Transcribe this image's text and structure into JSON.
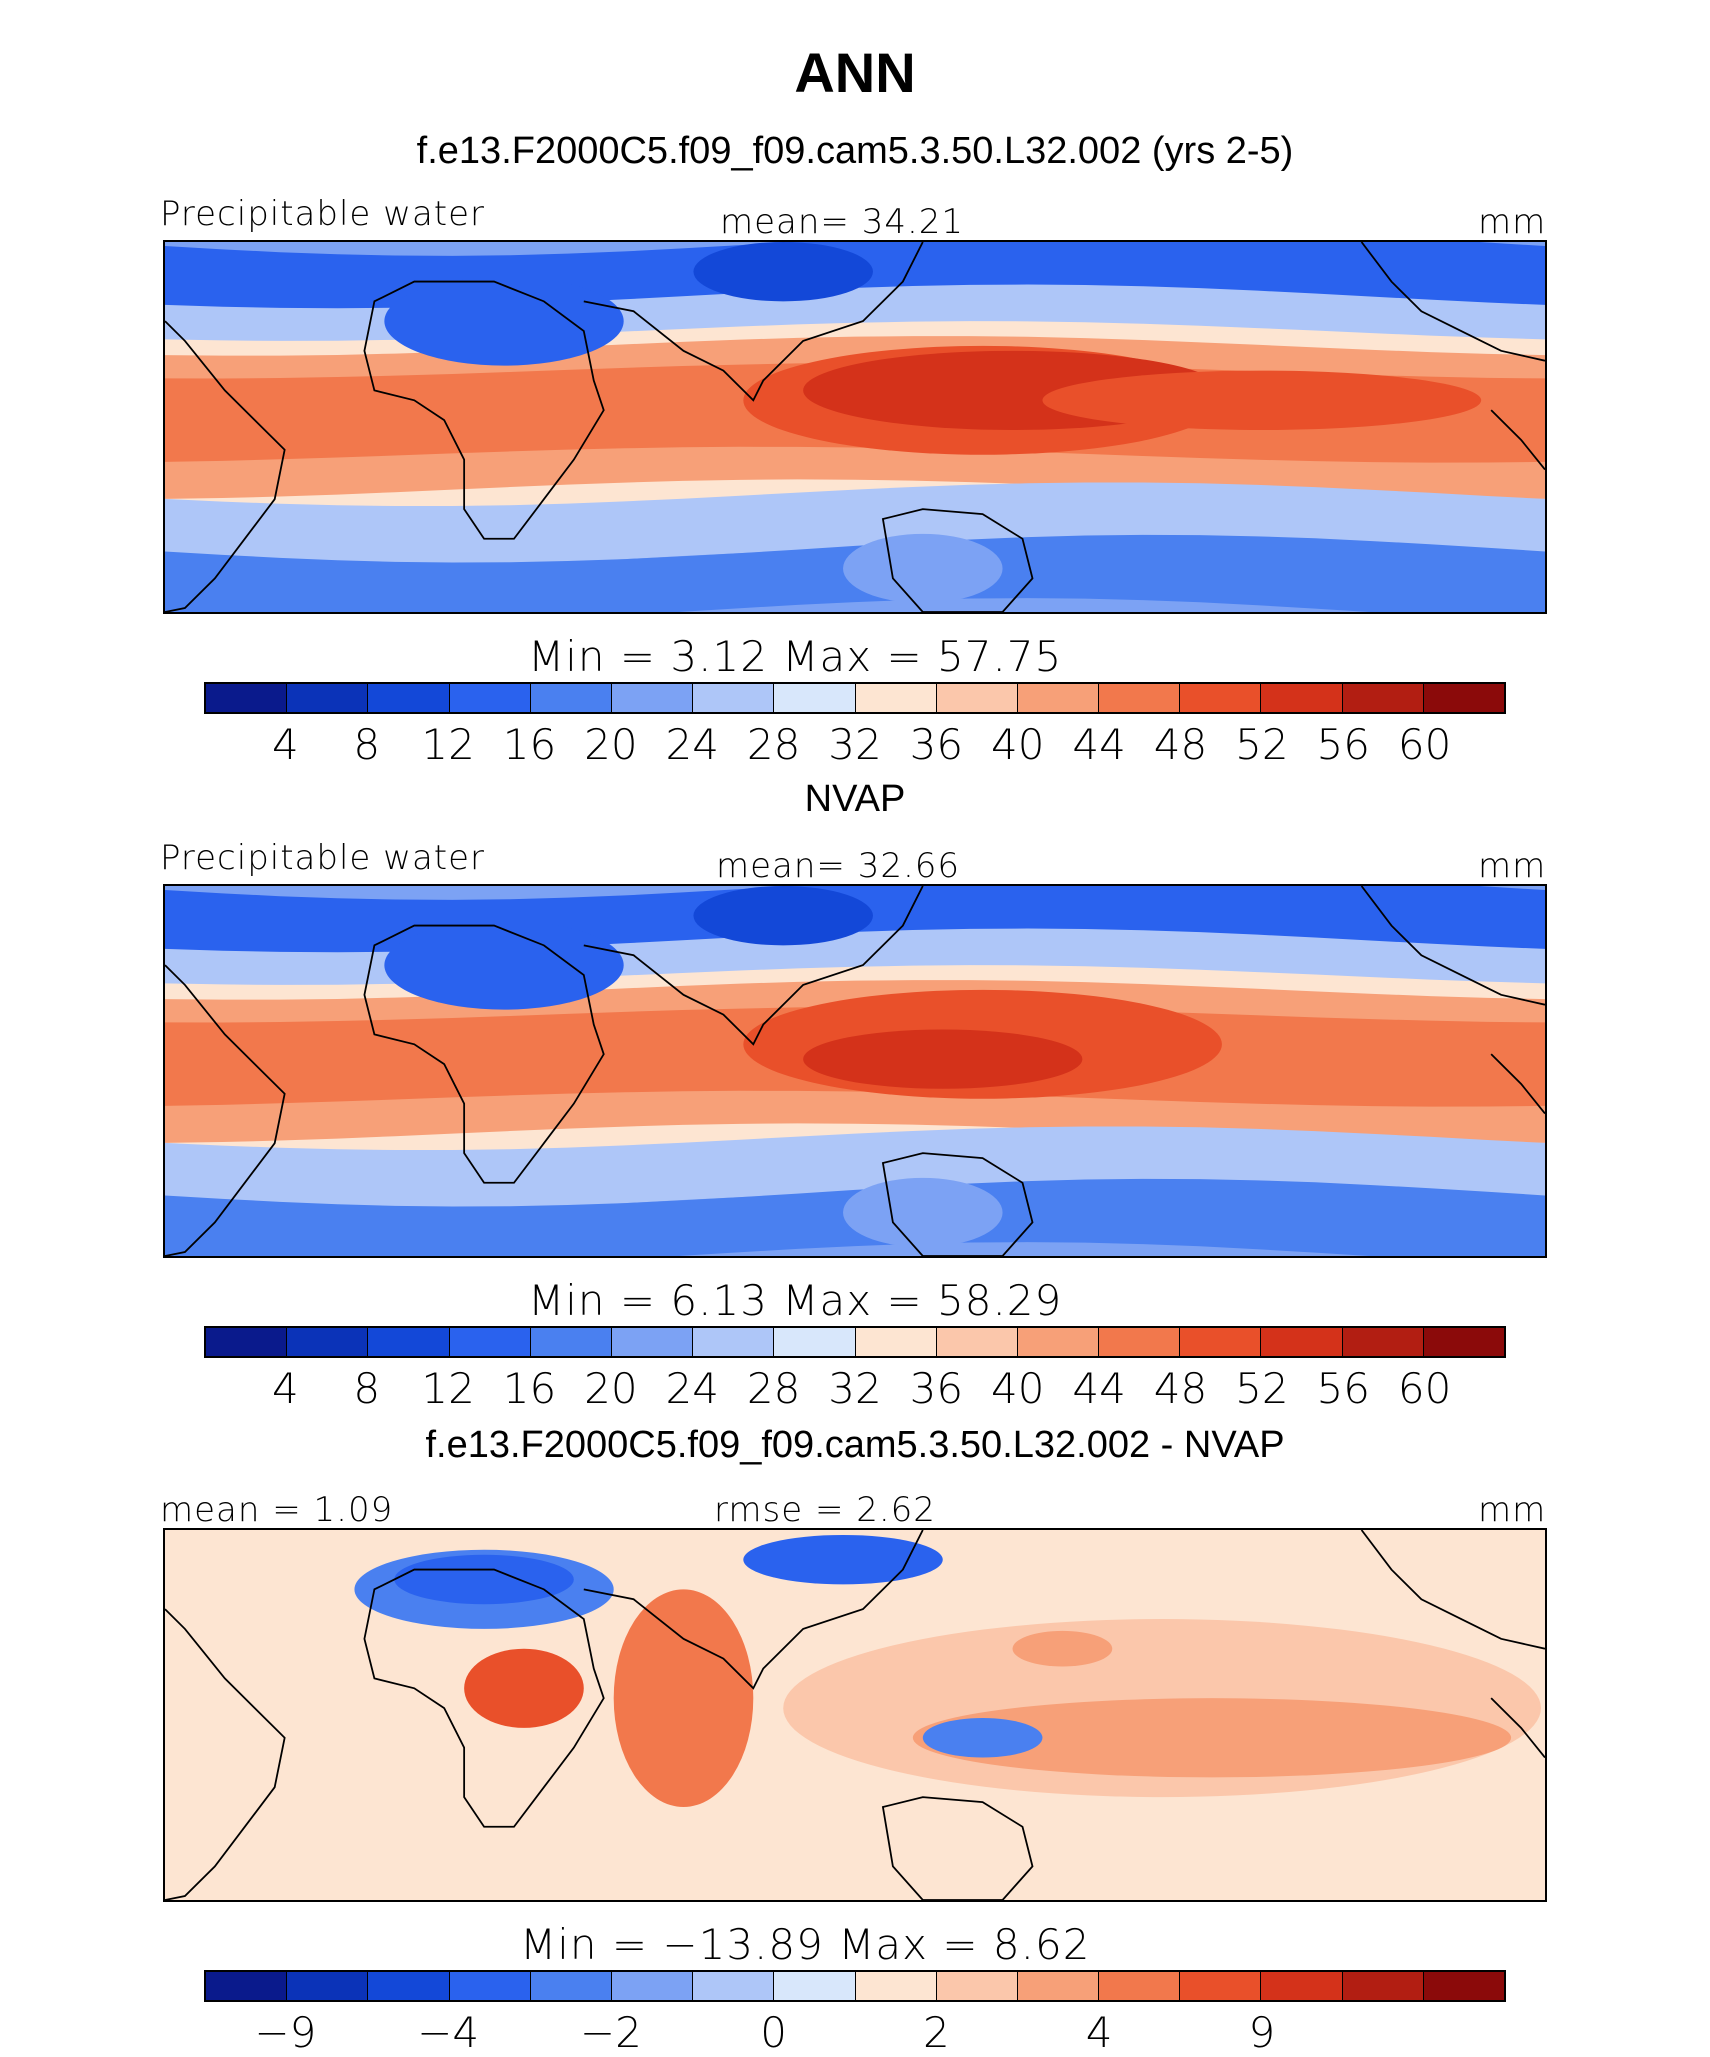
{
  "title": "ANN",
  "colors": [
    "#0a1a8c",
    "#0b33b8",
    "#1348d8",
    "#2a62ee",
    "#4a80f0",
    "#7ca2f4",
    "#aec6f8",
    "#d8e7fb",
    "#fde5d2",
    "#fbc7ab",
    "#f7a078",
    "#f2784c",
    "#e9502a",
    "#d4321a",
    "#b21e12",
    "#8b0a0a"
  ],
  "panels": [
    {
      "case_title": "f.e13.F2000C5.f09_f09.cam5.3.50.L32.002 (yrs 2-5)",
      "left_label": "Precipitable water",
      "center_label": "mean=   34.21",
      "units": "mm",
      "minmax": "Min  =     3.12  Max  =    57.75",
      "tick_labels": [
        "4",
        "8",
        "12",
        "16",
        "20",
        "24",
        "28",
        "32",
        "36",
        "40",
        "44",
        "48",
        "52",
        "56",
        "60"
      ]
    },
    {
      "case_title": "NVAP",
      "left_label": "Precipitable water",
      "center_label": "mean=   32.66",
      "units": "mm",
      "minmax": "Min  =     6.13  Max  =    58.29",
      "tick_labels": [
        "4",
        "8",
        "12",
        "16",
        "20",
        "24",
        "28",
        "32",
        "36",
        "40",
        "44",
        "48",
        "52",
        "56",
        "60"
      ]
    },
    {
      "case_title": "f.e13.F2000C5.f09_f09.cam5.3.50.L32.002 - NVAP",
      "left_label": "mean =    1.09",
      "center_label": "rmse =    2.62",
      "units": "mm",
      "minmax": "Min  = −13.89  Max  =     8.62",
      "tick_labels": [
        "−9",
        "−4",
        "−2",
        "0",
        "2",
        "4",
        "9"
      ]
    }
  ],
  "chart_data": [
    {
      "type": "heatmap",
      "title": "f.e13.F2000C5.f09_f09.cam5.3.50.L32.002 (yrs 2-5)",
      "variable": "Precipitable water",
      "units": "mm",
      "mean": 34.21,
      "min": 3.12,
      "max": 57.75,
      "contour_levels": [
        4,
        8,
        12,
        16,
        20,
        24,
        28,
        32,
        36,
        40,
        44,
        48,
        52,
        56,
        60
      ]
    },
    {
      "type": "heatmap",
      "title": "NVAP",
      "variable": "Precipitable water",
      "units": "mm",
      "mean": 32.66,
      "min": 6.13,
      "max": 58.29,
      "contour_levels": [
        4,
        8,
        12,
        16,
        20,
        24,
        28,
        32,
        36,
        40,
        44,
        48,
        52,
        56,
        60
      ]
    },
    {
      "type": "heatmap",
      "title": "f.e13.F2000C5.f09_f09.cam5.3.50.L32.002 - NVAP",
      "units": "mm",
      "mean": 1.09,
      "rmse": 2.62,
      "min": -13.89,
      "max": 8.62,
      "contour_levels": [
        -9,
        -4,
        -2,
        0,
        2,
        4,
        9
      ]
    }
  ]
}
